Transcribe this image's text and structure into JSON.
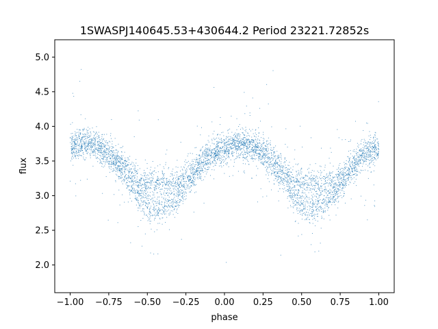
{
  "chart_data": {
    "type": "scatter",
    "title": "1SWASPJ140645.53+430644.2 Period 23221.72852s",
    "xlabel": "phase",
    "ylabel": "flux",
    "xlim": [
      -1.1,
      1.1
    ],
    "ylim": [
      1.6,
      5.25
    ],
    "xticks": [
      -1.0,
      -0.75,
      -0.5,
      -0.25,
      0.0,
      0.25,
      0.5,
      0.75,
      1.0
    ],
    "xtick_labels": [
      "−1.00",
      "−0.75",
      "−0.50",
      "−0.25",
      "0.00",
      "0.25",
      "0.50",
      "0.75",
      "1.00"
    ],
    "yticks": [
      2.0,
      2.5,
      3.0,
      3.5,
      4.0,
      4.5,
      5.0
    ],
    "ytick_labels": [
      "2.0",
      "2.5",
      "3.0",
      "3.5",
      "4.0",
      "4.5",
      "5.0"
    ],
    "grid": false,
    "legend": "none",
    "marker_color": "#1f77b4",
    "series": [
      {
        "x": [
          -1.0,
          -0.95,
          -0.9,
          -0.85,
          -0.8,
          -0.75,
          -0.7,
          -0.65,
          -0.6,
          -0.55,
          -0.5,
          -0.45,
          -0.4,
          -0.35,
          -0.3,
          -0.25,
          -0.2,
          -0.15,
          -0.1,
          -0.05,
          0.0,
          0.05,
          0.1,
          0.15,
          0.2,
          0.25,
          0.3,
          0.35,
          0.4,
          0.45,
          0.5,
          0.55,
          0.6,
          0.65,
          0.7,
          0.75,
          0.8,
          0.85,
          0.9,
          0.95,
          1.0
        ],
        "y_upper": [
          3.72,
          3.77,
          3.78,
          3.76,
          3.72,
          3.66,
          3.58,
          3.47,
          3.33,
          3.22,
          3.18,
          3.18,
          3.18,
          3.18,
          3.2,
          3.27,
          3.38,
          3.5,
          3.6,
          3.67,
          3.72,
          3.77,
          3.78,
          3.76,
          3.72,
          3.66,
          3.58,
          3.47,
          3.33,
          3.22,
          3.18,
          3.18,
          3.18,
          3.18,
          3.2,
          3.27,
          3.38,
          3.5,
          3.6,
          3.67,
          3.72
        ],
        "y_lower": [
          3.65,
          3.7,
          3.74,
          3.72,
          3.66,
          3.57,
          3.45,
          3.3,
          3.13,
          2.97,
          2.85,
          2.8,
          2.82,
          2.88,
          2.98,
          3.12,
          3.28,
          3.43,
          3.55,
          3.62,
          3.65,
          3.7,
          3.74,
          3.72,
          3.66,
          3.57,
          3.45,
          3.3,
          3.13,
          2.97,
          2.85,
          2.8,
          2.82,
          2.88,
          2.98,
          3.12,
          3.28,
          3.43,
          3.55,
          3.62,
          3.65
        ]
      }
    ]
  }
}
